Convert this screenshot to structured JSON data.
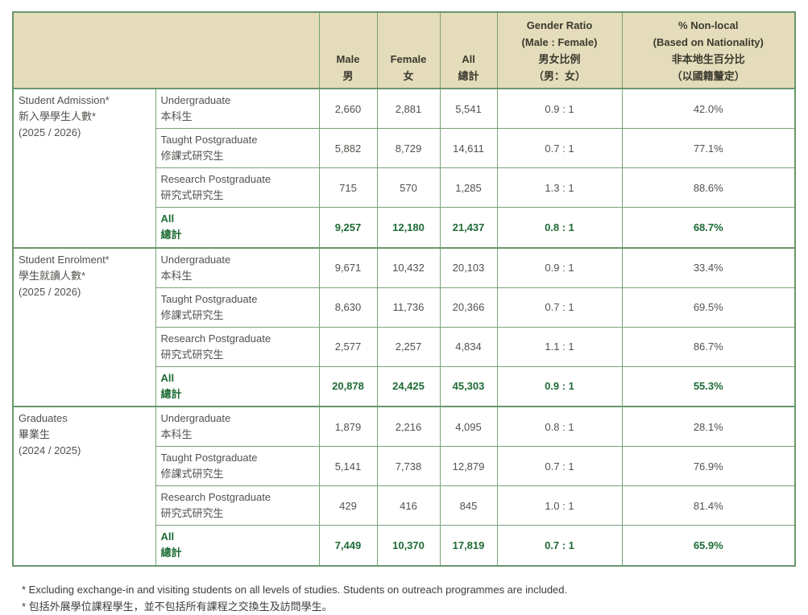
{
  "table": {
    "header": {
      "male": {
        "en": "Male",
        "zh": "男"
      },
      "female": {
        "en": "Female",
        "zh": "女"
      },
      "all": {
        "en": "All",
        "zh": "總計"
      },
      "gender_ratio": {
        "en": "Gender Ratio",
        "en2": "(Male : Female)",
        "zh": "男女比例",
        "zh2": "（男：女）"
      },
      "non_local": {
        "en": "% Non-local",
        "en2": "(Based on Nationality)",
        "zh": "非本地生百分比",
        "zh2": "（以國籍釐定）"
      }
    },
    "sections": [
      {
        "label_en": "Student Admission*",
        "label_zh": "新入學學生人數*",
        "label_year": "(2025 / 2026)",
        "rows": [
          {
            "en": "Undergraduate",
            "zh": "本科生",
            "male": "2,660",
            "female": "2,881",
            "all": "5,541",
            "ratio": "0.9 : 1",
            "nonlocal": "42.0%",
            "is_total": false
          },
          {
            "en": "Taught Postgraduate",
            "zh": "修課式研究生",
            "male": "5,882",
            "female": "8,729",
            "all": "14,611",
            "ratio": "0.7 : 1",
            "nonlocal": "77.1%",
            "is_total": false
          },
          {
            "en": "Research Postgraduate",
            "zh": "研究式研究生",
            "male": "715",
            "female": "570",
            "all": "1,285",
            "ratio": "1.3 : 1",
            "nonlocal": "88.6%",
            "is_total": false
          },
          {
            "en": "All",
            "zh": "總計",
            "male": "9,257",
            "female": "12,180",
            "all": "21,437",
            "ratio": "0.8 : 1",
            "nonlocal": "68.7%",
            "is_total": true
          }
        ]
      },
      {
        "label_en": "Student Enrolment*",
        "label_zh": "學生就讀人數*",
        "label_year": "(2025 / 2026)",
        "rows": [
          {
            "en": "Undergraduate",
            "zh": "本科生",
            "male": "9,671",
            "female": "10,432",
            "all": "20,103",
            "ratio": "0.9 : 1",
            "nonlocal": "33.4%",
            "is_total": false
          },
          {
            "en": "Taught Postgraduate",
            "zh": "修課式研究生",
            "male": "8,630",
            "female": "11,736",
            "all": "20,366",
            "ratio": "0.7 : 1",
            "nonlocal": "69.5%",
            "is_total": false
          },
          {
            "en": "Research Postgraduate",
            "zh": "研究式研究生",
            "male": "2,577",
            "female": "2,257",
            "all": "4,834",
            "ratio": "1.1 : 1",
            "nonlocal": "86.7%",
            "is_total": false
          },
          {
            "en": "All",
            "zh": "總計",
            "male": "20,878",
            "female": "24,425",
            "all": "45,303",
            "ratio": "0.9 : 1",
            "nonlocal": "55.3%",
            "is_total": true
          }
        ]
      },
      {
        "label_en": "Graduates",
        "label_zh": "畢業生",
        "label_year": "(2024 / 2025)",
        "rows": [
          {
            "en": "Undergraduate",
            "zh": "本科生",
            "male": "1,879",
            "female": "2,216",
            "all": "4,095",
            "ratio": "0.8 : 1",
            "nonlocal": "28.1%",
            "is_total": false
          },
          {
            "en": "Taught Postgraduate",
            "zh": "修課式研究生",
            "male": "5,141",
            "female": "7,738",
            "all": "12,879",
            "ratio": "0.7 : 1",
            "nonlocal": "76.9%",
            "is_total": false
          },
          {
            "en": "Research Postgraduate",
            "zh": "研究式研究生",
            "male": "429",
            "female": "416",
            "all": "845",
            "ratio": "1.0 : 1",
            "nonlocal": "81.4%",
            "is_total": false
          },
          {
            "en": "All",
            "zh": "總計",
            "male": "7,449",
            "female": "10,370",
            "all": "17,819",
            "ratio": "0.7 : 1",
            "nonlocal": "65.9%",
            "is_total": true
          }
        ]
      }
    ]
  },
  "footnotes": [
    "* Excluding exchange-in and visiting students on all levels of studies. Students on outreach programmes are included.",
    "* 包括外展學位課程學生，並不包括所有課程之交換生及訪問學生。"
  ],
  "colors": {
    "header_bg": "#e4dcba",
    "border_green": "#7aa27a",
    "border_green_thick": "#69976c",
    "accent_green": "#1e6b35",
    "body_text": "#52514d"
  }
}
